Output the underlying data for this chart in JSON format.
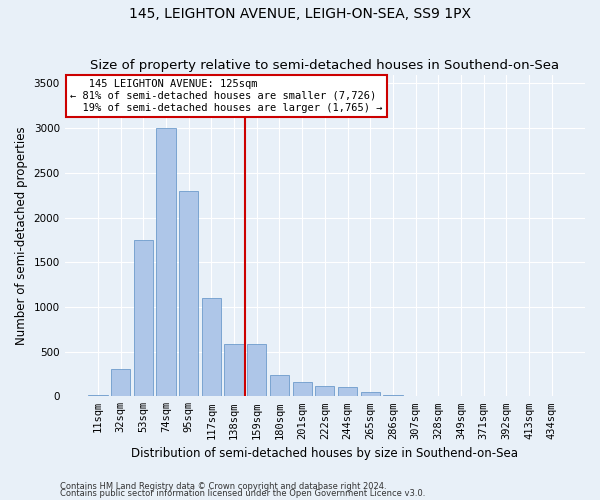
{
  "title": "145, LEIGHTON AVENUE, LEIGH-ON-SEA, SS9 1PX",
  "subtitle": "Size of property relative to semi-detached houses in Southend-on-Sea",
  "xlabel": "Distribution of semi-detached houses by size in Southend-on-Sea",
  "ylabel": "Number of semi-detached properties",
  "footnote1": "Contains HM Land Registry data © Crown copyright and database right 2024.",
  "footnote2": "Contains public sector information licensed under the Open Government Licence v3.0.",
  "bar_labels": [
    "11sqm",
    "32sqm",
    "53sqm",
    "74sqm",
    "95sqm",
    "117sqm",
    "138sqm",
    "159sqm",
    "180sqm",
    "201sqm",
    "222sqm",
    "244sqm",
    "265sqm",
    "286sqm",
    "307sqm",
    "328sqm",
    "349sqm",
    "371sqm",
    "392sqm",
    "413sqm",
    "434sqm"
  ],
  "bar_values": [
    18,
    300,
    1750,
    3000,
    2300,
    1100,
    580,
    580,
    240,
    160,
    120,
    100,
    50,
    20,
    5,
    5,
    3,
    2,
    1,
    1,
    1
  ],
  "bar_color": "#aec6e8",
  "bar_edge_color": "#5a8fc4",
  "vline_index": 6,
  "vline_color": "#cc0000",
  "annotation_text": "   145 LEIGHTON AVENUE: 125sqm\n← 81% of semi-detached houses are smaller (7,726)\n  19% of semi-detached houses are larger (1,765) →",
  "annotation_box_color": "#ffffff",
  "annotation_box_edge": "#cc0000",
  "ylim": [
    0,
    3600
  ],
  "yticks": [
    0,
    500,
    1000,
    1500,
    2000,
    2500,
    3000,
    3500
  ],
  "bg_color": "#e8f0f8",
  "plot_bg_color": "#e8f0f8",
  "grid_color": "#ffffff",
  "title_fontsize": 10,
  "axis_label_fontsize": 8.5,
  "tick_fontsize": 7.5,
  "footnote_fontsize": 6
}
